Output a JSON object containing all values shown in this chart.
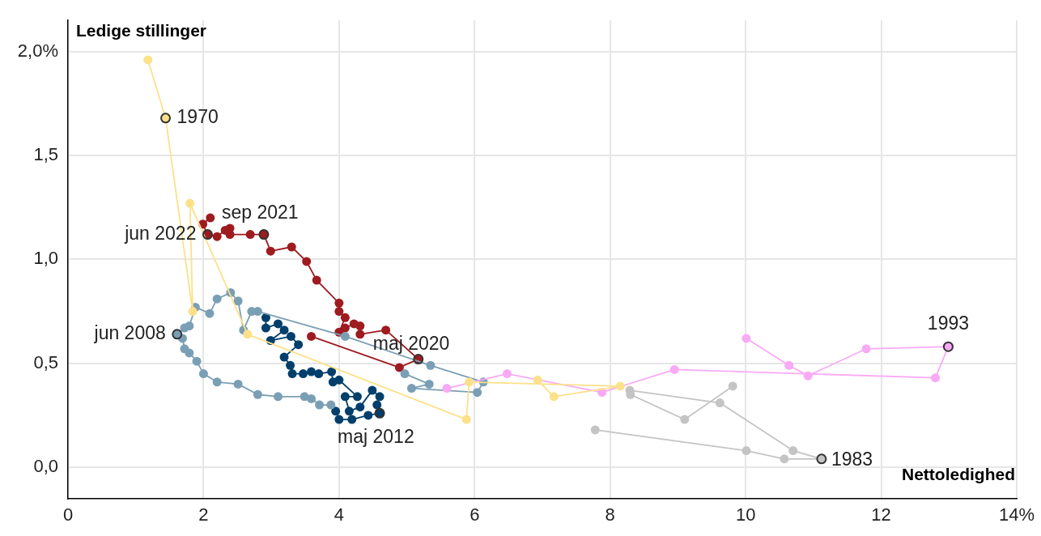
{
  "chart_data": {
    "type": "line",
    "xlabel": "Nettoledighed",
    "ylabel": "Ledige stillinger",
    "xlim": [
      0,
      14
    ],
    "xticks": [
      0,
      2,
      4,
      6,
      8,
      10,
      12,
      {
        "value": 14,
        "label": "14%"
      }
    ],
    "ylim": [
      -0.15,
      2.15
    ],
    "yticks": [
      {
        "value": 0,
        "label": "0,0"
      },
      {
        "value": 0.5,
        "label": "0,5"
      },
      {
        "value": 1,
        "label": "1,0"
      },
      {
        "value": 1.5,
        "label": "1,5"
      },
      {
        "value": 2,
        "label": "2,0%"
      }
    ],
    "grid": true,
    "legend": false,
    "marker": "circle",
    "line_style": "solid",
    "series": [
      {
        "color": "#fce18a",
        "x": [
          1.18,
          1.44,
          1.84,
          1.8,
          2.65,
          5.88,
          5.92,
          8.15,
          7.17,
          6.93
        ],
        "values": [
          1.96,
          1.68,
          0.75,
          1.27,
          0.64,
          0.23,
          0.41,
          0.39,
          0.34,
          0.42
        ]
      },
      {
        "color": "#c4c4c4",
        "x": [
          7.78,
          10.01,
          10.57,
          11.12,
          10.7,
          9.62,
          8.29,
          8.3,
          9.1,
          9.81
        ],
        "values": [
          0.18,
          0.08,
          0.04,
          0.04,
          0.08,
          0.31,
          0.37,
          0.35,
          0.23,
          0.39
        ]
      },
      {
        "color": "#f9aaf5",
        "x": [
          10.01,
          10.64,
          10.92,
          11.78,
          12.99,
          12.8,
          8.95,
          7.88,
          6.48,
          5.59
        ],
        "values": [
          0.62,
          0.49,
          0.44,
          0.57,
          0.58,
          0.43,
          0.47,
          0.36,
          0.45,
          0.38
        ]
      },
      {
        "color": "#7a9fb5",
        "x": [
          4.97,
          5.33,
          5.07,
          6.04,
          6.13,
          5.35,
          4.09,
          2.8,
          2.71,
          2.59,
          2.51,
          2.4,
          2.2,
          2.09,
          1.88,
          1.79,
          1.72,
          1.61,
          1.69,
          1.72,
          1.79,
          1.9,
          2.0,
          2.2,
          2.51,
          2.8,
          3.1,
          3.49,
          3.59,
          3.71,
          3.88
        ],
        "values": [
          0.45,
          0.4,
          0.38,
          0.36,
          0.41,
          0.49,
          0.63,
          0.75,
          0.75,
          0.66,
          0.8,
          0.84,
          0.81,
          0.74,
          0.77,
          0.68,
          0.67,
          0.64,
          0.62,
          0.57,
          0.55,
          0.51,
          0.45,
          0.41,
          0.4,
          0.35,
          0.34,
          0.34,
          0.33,
          0.3,
          0.3
        ]
      },
      {
        "color": "#003f6b",
        "x": [
          3.95,
          4.0,
          4.19,
          4.43,
          4.6,
          4.56,
          4.6,
          4.49,
          4.31,
          4.15,
          4.09,
          4.27,
          4.0,
          3.91,
          3.89,
          3.7,
          3.59,
          3.47,
          3.31,
          3.28,
          3.19,
          3.4,
          3.29,
          2.99,
          3.19,
          3.1,
          2.92,
          2.92
        ],
        "values": [
          0.27,
          0.23,
          0.23,
          0.25,
          0.26,
          0.3,
          0.34,
          0.37,
          0.29,
          0.27,
          0.34,
          0.34,
          0.42,
          0.41,
          0.46,
          0.45,
          0.46,
          0.45,
          0.45,
          0.49,
          0.53,
          0.59,
          0.63,
          0.61,
          0.66,
          0.69,
          0.67,
          0.72
        ]
      },
      {
        "color": "#9e1b20",
        "x": [
          3.59,
          4.89,
          5.17,
          4.69,
          4.31,
          4.31,
          4.22,
          4.09,
          4.0,
          4.09,
          4.0,
          4.0,
          3.67,
          3.52,
          3.3,
          2.99,
          2.89,
          2.69,
          2.39,
          2.39,
          2.32,
          2.2,
          2.06,
          1.99,
          2.1
        ],
        "values": [
          0.63,
          0.48,
          0.52,
          0.66,
          0.64,
          0.68,
          0.69,
          0.67,
          0.65,
          0.72,
          0.75,
          0.79,
          0.9,
          0.99,
          1.06,
          1.04,
          1.12,
          1.12,
          1.12,
          1.15,
          1.14,
          1.11,
          1.12,
          1.17,
          1.2
        ]
      }
    ],
    "annotations": [
      {
        "text": "1970",
        "x": 1.44,
        "y": 1.68
      },
      {
        "text": "sep 2021",
        "x": 2.89,
        "y": 1.12
      },
      {
        "text": "jun 2022",
        "x": 2.06,
        "y": 1.12
      },
      {
        "text": "jun 2008",
        "x": 1.61,
        "y": 0.64
      },
      {
        "text": "maj 2020",
        "x": 5.17,
        "y": 0.52
      },
      {
        "text": "maj 2012",
        "x": 4.6,
        "y": 0.26
      },
      {
        "text": "1993",
        "x": 12.99,
        "y": 0.58
      },
      {
        "text": "1983",
        "x": 11.12,
        "y": 0.04
      }
    ]
  }
}
